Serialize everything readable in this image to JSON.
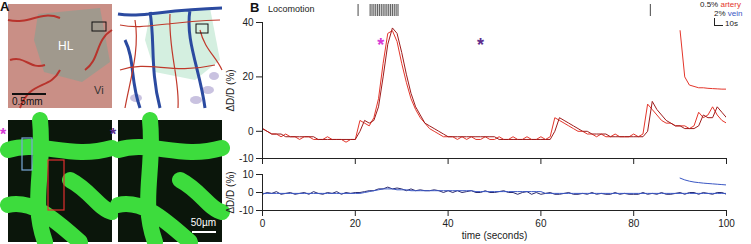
{
  "figure": {
    "panel_labels": [
      "A",
      "B"
    ],
    "image_labels": [
      "HL",
      "Vi"
    ],
    "scale_bars": [
      "0.5mm",
      "50µm"
    ],
    "image_markers": [
      {
        "text": "*",
        "color": "#d63ad6"
      },
      {
        "text": "*",
        "color": "#5e2d8c"
      }
    ],
    "scale_legend": [
      {
        "text": "0.5%",
        "color": "#222222"
      },
      {
        "text": "artery",
        "color": "#e4362b"
      },
      {
        "text": "2%",
        "color": "#222222"
      },
      {
        "text": "vein",
        "color": "#3a57c4"
      },
      {
        "text": "10s",
        "color": "#222222"
      }
    ]
  },
  "chart_data": [
    {
      "type": "line",
      "ylabel": "ΔD/D (%)",
      "x": [
        0,
        1,
        2,
        3,
        4,
        5,
        6,
        7,
        8,
        9,
        10,
        11,
        12,
        13,
        14,
        15,
        16,
        17,
        18,
        19,
        20,
        21,
        22,
        23,
        24,
        25,
        26,
        27,
        28,
        29,
        30,
        31,
        32,
        33,
        34,
        35,
        36,
        37,
        38,
        39,
        40,
        41,
        42,
        43,
        44,
        45,
        46,
        47,
        48,
        49,
        50,
        51,
        52,
        53,
        54,
        55,
        56,
        57,
        58,
        59,
        60,
        61,
        62,
        63,
        64,
        65,
        66,
        67,
        68,
        69,
        70,
        71,
        72,
        73,
        74,
        75,
        76,
        77,
        78,
        79,
        80,
        81,
        82,
        83,
        84,
        85,
        86,
        87,
        88,
        89,
        90,
        91,
        92,
        93,
        94,
        95,
        96,
        97,
        98,
        99,
        100
      ],
      "xlim": [
        0,
        100
      ],
      "xticks": [
        0,
        20,
        40,
        60,
        80,
        100
      ],
      "ylim": [
        -10,
        40
      ],
      "yticks": [
        -10,
        0,
        20,
        40
      ],
      "tick_labels": "y",
      "locomotion_label": "Locomotion",
      "locomotion": [
        20.6,
        23.2,
        23.6,
        24.0,
        24.4,
        24.8,
        25.2,
        25.6,
        26.0,
        26.4,
        26.8,
        27.2,
        27.6,
        28.0,
        28.4,
        28.8,
        29.2,
        83.6
      ],
      "annotations": [
        {
          "text": "*",
          "x": 25.5,
          "y": 31.5,
          "color": "#d63ad6"
        },
        {
          "text": "*",
          "x": 47,
          "y": 31.5,
          "color": "#5e2d8c"
        }
      ],
      "series": [
        {
          "name": "artery",
          "color": "#e4362b",
          "values": [
            1,
            0,
            -1,
            -1,
            -2,
            -1,
            -2,
            -2,
            -3,
            -2,
            -2,
            -3,
            -3,
            -3,
            -2,
            -3,
            -3,
            -3,
            -4,
            -3,
            -3,
            4,
            3,
            2,
            5,
            12,
            25,
            36,
            37,
            33,
            25,
            18,
            12,
            8,
            5,
            3,
            1,
            0,
            -1,
            -2,
            -2,
            -2,
            -3,
            -2,
            -3,
            -2,
            -3,
            -3,
            -2,
            -3,
            -3,
            -2,
            -3,
            -3,
            -2,
            -3,
            -3,
            -2,
            -3,
            -3,
            -2,
            -3,
            -2,
            5,
            4,
            3,
            2,
            1,
            0,
            0,
            -1,
            -1,
            -2,
            -1,
            -2,
            -2,
            -1,
            -2,
            -2,
            -2,
            -1,
            -2,
            -1,
            10,
            8,
            6,
            4,
            3,
            3,
            2,
            2,
            2,
            1,
            2,
            7,
            5,
            6,
            9,
            6,
            4,
            3
          ]
        },
        {
          "color": "#9e1b1b",
          "values": [
            1,
            0,
            -1,
            -1,
            -1,
            -2,
            -2,
            -2,
            -2,
            -2,
            -2,
            -2,
            -3,
            -3,
            -3,
            -3,
            -3,
            -3,
            -3,
            -3,
            -3,
            0,
            4,
            3,
            4,
            9,
            20,
            32,
            38,
            36,
            29,
            21,
            14,
            9,
            6,
            3,
            2,
            1,
            0,
            -1,
            -2,
            -2,
            -2,
            -2,
            -2,
            -2,
            -2,
            -2,
            -2,
            -2,
            -2,
            -3,
            -3,
            -3,
            -3,
            -3,
            -3,
            -3,
            -3,
            -3,
            -3,
            -3,
            -3,
            0,
            5,
            4,
            3,
            2,
            1,
            0,
            0,
            -1,
            -1,
            -1,
            -1,
            -2,
            -2,
            -2,
            -2,
            -2,
            -2,
            -2,
            -2,
            0,
            11,
            8,
            6,
            4,
            3,
            2,
            2,
            1,
            1,
            1,
            2,
            6,
            5,
            5,
            9,
            7,
            5
          ]
        },
        {
          "color": "#e4362b",
          "x": [
            90,
            91,
            92,
            93,
            94,
            95,
            96,
            97,
            98,
            99,
            100
          ],
          "values": [
            37,
            20,
            17,
            16.5,
            16,
            16,
            15.8,
            15.7,
            15.6,
            15.5,
            15.5
          ]
        }
      ]
    },
    {
      "type": "line",
      "xlabel": "time (seconds)",
      "ylabel": "ΔD/D (%)",
      "x": [
        0,
        1,
        2,
        3,
        4,
        5,
        6,
        7,
        8,
        9,
        10,
        11,
        12,
        13,
        14,
        15,
        16,
        17,
        18,
        19,
        20,
        21,
        22,
        23,
        24,
        25,
        26,
        27,
        28,
        29,
        30,
        31,
        32,
        33,
        34,
        35,
        36,
        37,
        38,
        39,
        40,
        41,
        42,
        43,
        44,
        45,
        46,
        47,
        48,
        49,
        50,
        51,
        52,
        53,
        54,
        55,
        56,
        57,
        58,
        59,
        60,
        61,
        62,
        63,
        64,
        65,
        66,
        67,
        68,
        69,
        70,
        71,
        72,
        73,
        74,
        75,
        76,
        77,
        78,
        79,
        80,
        81,
        82,
        83,
        84,
        85,
        86,
        87,
        88,
        89,
        90,
        91,
        92,
        93,
        94,
        95,
        96,
        97,
        98,
        99,
        100
      ],
      "xlim": [
        0,
        100
      ],
      "xticks": [
        0,
        20,
        40,
        60,
        80,
        100
      ],
      "ylim": [
        -10,
        10
      ],
      "yticks": [
        -10,
        0,
        10
      ],
      "series": [
        {
          "name": "vein",
          "color": "#2a2a6e",
          "values": [
            -1,
            0,
            -0.5,
            0.5,
            -1,
            -0.5,
            0,
            -1,
            -0.5,
            0,
            -1,
            0.5,
            -0.5,
            -1,
            0,
            -0.5,
            0.5,
            -1,
            0,
            -0.5,
            0,
            0,
            0.5,
            1,
            1,
            2,
            2,
            3,
            2,
            2.5,
            2,
            1,
            2,
            1,
            1.5,
            1,
            1,
            1.5,
            1,
            0,
            1,
            0,
            1,
            0,
            0.5,
            1,
            0,
            0,
            1,
            0,
            0,
            0.5,
            1,
            0,
            0,
            -1,
            0,
            0.5,
            -1,
            0,
            -1,
            -0.5,
            0,
            -1,
            -1,
            -0.5,
            0,
            -1,
            -1,
            -0.5,
            -1,
            0,
            -1,
            -0.5,
            -1,
            -1,
            0,
            -1,
            -0.5,
            -1,
            -1,
            -1,
            0,
            -1,
            -0.5,
            -1,
            0,
            -1,
            -1,
            -0.5,
            0,
            -1,
            0,
            0,
            -1,
            0,
            -0.5,
            -1,
            0,
            0,
            -1
          ]
        },
        {
          "color": "#3a57c4",
          "values": [
            -0.5,
            -0.5,
            -0.5,
            -0.5,
            -0.5,
            -0.5,
            -0.5,
            -0.5,
            -0.5,
            -0.5,
            -0.5,
            -0.5,
            -0.5,
            -0.5,
            -0.5,
            -0.5,
            -0.5,
            -0.5,
            -0.5,
            -0.5,
            -0.5,
            -0.5,
            0,
            0.5,
            1,
            1.5,
            2,
            2,
            2,
            1.5,
            1.5,
            1.5,
            1,
            1,
            1,
            1,
            1,
            1,
            1,
            1,
            1,
            1,
            1,
            1,
            1,
            1,
            0.5,
            0.5,
            0.5,
            0.5,
            0.5,
            0.5,
            0.5,
            0.5,
            0.5,
            0.5,
            0.5,
            0.5,
            0.5,
            0.5,
            0.5,
            -0.5,
            -0.5,
            -0.5,
            -0.5,
            -0.5,
            -0.5,
            -0.5,
            -0.5,
            -0.5,
            -0.5,
            -0.5,
            -0.5,
            -0.5,
            -0.5,
            -0.5,
            -0.5,
            -0.5,
            -0.5,
            -0.5,
            -0.5,
            -0.5,
            -0.5,
            -0.5,
            -0.5,
            -0.5,
            -0.5,
            -0.5,
            -0.5,
            -0.5,
            -0.5,
            -0.5,
            -0.5,
            -0.5,
            -0.5,
            -0.5,
            -0.5,
            -0.5,
            -0.5,
            -0.5,
            -0.5
          ]
        },
        {
          "color": "#3a57c4",
          "x": [
            90,
            91,
            92,
            93,
            94,
            95,
            96,
            97,
            98,
            99,
            100
          ],
          "values": [
            8,
            7,
            6.3,
            5.8,
            5.5,
            5.2,
            5,
            4.8,
            4.6,
            4.4,
            4.2
          ]
        }
      ]
    }
  ]
}
